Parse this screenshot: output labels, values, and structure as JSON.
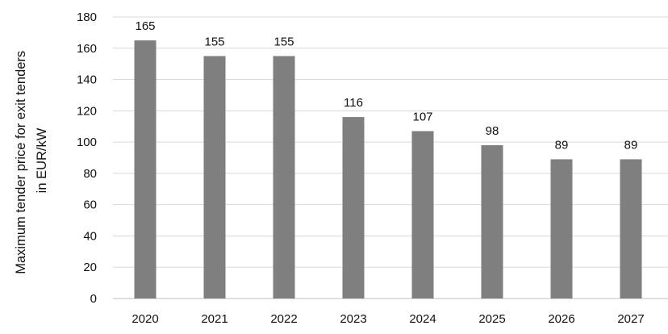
{
  "chart_data": {
    "type": "bar",
    "title": "",
    "xlabel": "",
    "ylabel_lines": [
      "Maximum tender price for exit tenders",
      "in EUR/kW"
    ],
    "categories": [
      "2020",
      "2021",
      "2022",
      "2023",
      "2024",
      "2025",
      "2026",
      "2027"
    ],
    "values": [
      165,
      155,
      155,
      116,
      107,
      98,
      89,
      89
    ],
    "data_labels": [
      "165",
      "155",
      "155",
      "116",
      "107",
      "98",
      "89",
      "89"
    ],
    "ylim": [
      0,
      180
    ],
    "yticks": [
      0,
      20,
      40,
      60,
      80,
      100,
      120,
      140,
      160,
      180
    ],
    "grid": true,
    "legend": "none",
    "colors": {
      "bar": "#7f7f7f",
      "grid": "#d9d9d9",
      "axis": "#bfbfbf",
      "text": "#111111"
    }
  }
}
